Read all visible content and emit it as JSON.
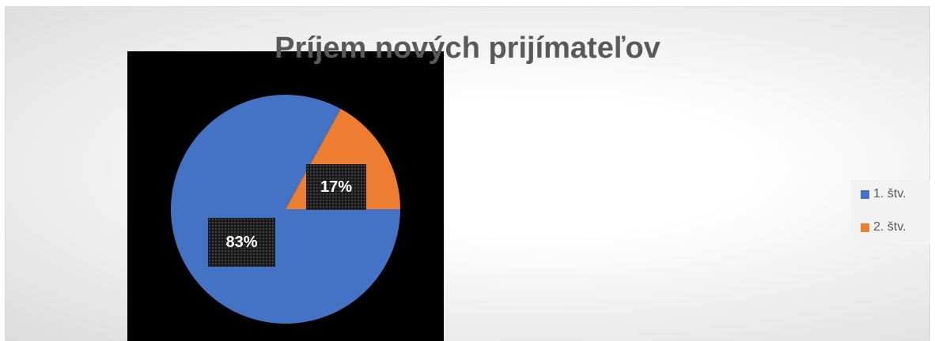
{
  "chart_data": {
    "type": "pie",
    "title": "Príjem nových prijímateľov",
    "categories": [
      "1. štv.",
      "2. štv."
    ],
    "values": [
      83,
      17
    ],
    "data_labels": [
      "83%",
      "17%"
    ],
    "colors": [
      "#4472c4",
      "#ed7d31"
    ],
    "legend_position": "right"
  }
}
